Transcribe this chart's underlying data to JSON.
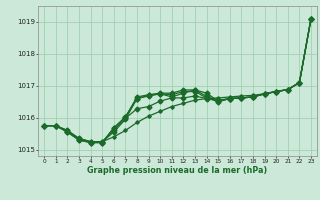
{
  "title": "Graphe pression niveau de la mer (hPa)",
  "background_color": "#cce8d8",
  "plot_bg_color": "#cce8d8",
  "grid_color": "#99ccaa",
  "line_color": "#1a6b2a",
  "x_ticks": [
    0,
    1,
    2,
    3,
    4,
    5,
    6,
    7,
    8,
    9,
    10,
    11,
    12,
    13,
    14,
    15,
    16,
    17,
    18,
    19,
    20,
    21,
    22,
    23
  ],
  "xlim": [
    -0.5,
    23.5
  ],
  "ylim": [
    1014.8,
    1019.5
  ],
  "y_ticks": [
    1015,
    1016,
    1017,
    1018,
    1019
  ],
  "sA": [
    1015.75,
    1015.75,
    1015.6,
    1015.35,
    1015.25,
    1015.25,
    1015.4,
    1015.6,
    1015.85,
    1016.05,
    1016.2,
    1016.35,
    1016.45,
    1016.55,
    1016.6,
    1016.62,
    1016.65,
    1016.68,
    1016.7,
    1016.75,
    1016.82,
    1016.88,
    1017.1,
    1019.1
  ],
  "sB": [
    1015.75,
    1015.75,
    1015.58,
    1015.32,
    1015.24,
    1015.24,
    1015.62,
    1015.98,
    1016.28,
    1016.35,
    1016.52,
    1016.62,
    1016.62,
    1016.68,
    1016.6,
    1016.55,
    1016.6,
    1016.62,
    1016.65,
    1016.75,
    1016.82,
    1016.88,
    1017.1,
    1019.1
  ],
  "sC": [
    1015.75,
    1015.75,
    1015.55,
    1015.3,
    1015.22,
    1015.22,
    1015.68,
    1016.02,
    1016.6,
    1016.68,
    1016.75,
    1016.65,
    1016.77,
    1016.87,
    1016.77,
    1016.52,
    1016.6,
    1016.62,
    1016.65,
    1016.75,
    1016.82,
    1016.88,
    1017.1,
    1019.1
  ],
  "sD": [
    1015.75,
    1015.75,
    1015.55,
    1015.3,
    1015.22,
    1015.22,
    1015.68,
    1016.02,
    1016.65,
    1016.72,
    1016.77,
    1016.77,
    1016.87,
    1016.87,
    1016.67,
    1016.52,
    1016.6,
    1016.62,
    1016.65,
    1016.75,
    1016.82,
    1016.88,
    1017.1,
    1019.1
  ],
  "sE": [
    1015.75,
    1015.75,
    1015.6,
    1015.35,
    1015.25,
    1015.25,
    1015.55,
    1015.95,
    1016.6,
    1016.7,
    1016.75,
    1016.72,
    1016.82,
    1016.82,
    1016.62,
    1016.5,
    1016.6,
    1016.62,
    1016.65,
    1016.75,
    1016.82,
    1016.88,
    1017.1,
    1019.1
  ]
}
